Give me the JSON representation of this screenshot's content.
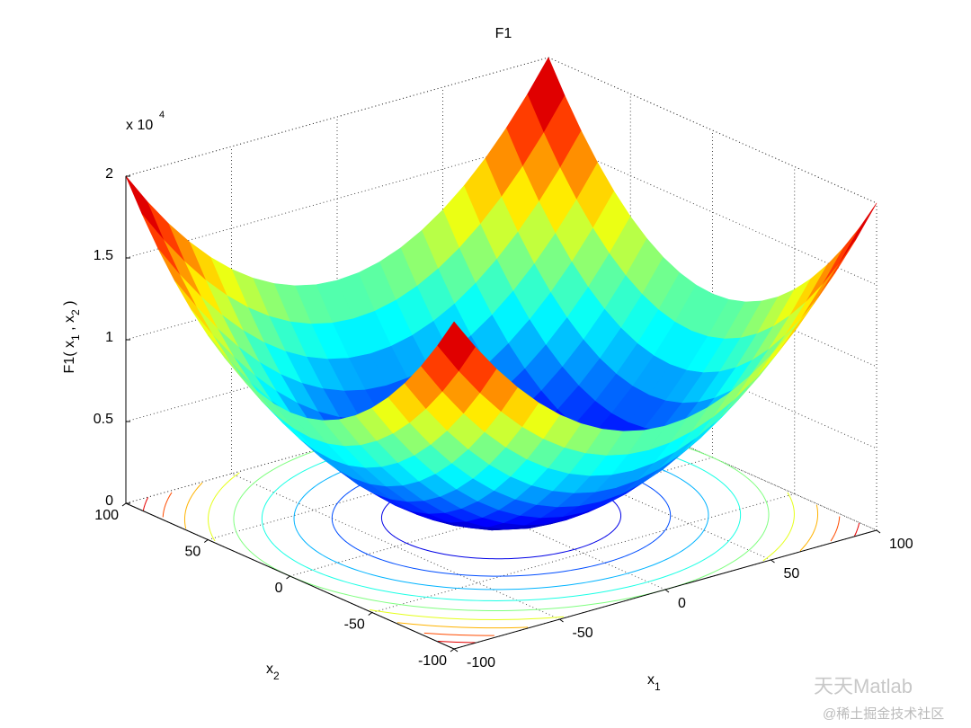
{
  "chart_data": {
    "type": "surface",
    "title": "F1",
    "xlabel": [
      "x",
      "1"
    ],
    "ylabel": [
      "x",
      "2"
    ],
    "zlabel": [
      "F1( x",
      "1",
      " , x",
      "2",
      " )"
    ],
    "z_scale_label": "x 10",
    "z_scale_exponent": "4",
    "x": [
      -100,
      -90,
      -80,
      -70,
      -60,
      -50,
      -40,
      -30,
      -20,
      -10,
      0,
      10,
      20,
      30,
      40,
      50,
      60,
      70,
      80,
      90,
      100
    ],
    "y": [
      -100,
      -90,
      -80,
      -70,
      -60,
      -50,
      -40,
      -30,
      -20,
      -10,
      0,
      10,
      20,
      30,
      40,
      50,
      60,
      70,
      80,
      90,
      100
    ],
    "z": [
      [
        20000,
        18100,
        16400,
        14900,
        13600,
        12500,
        11600,
        10900,
        10400,
        10100,
        10000,
        10100,
        10400,
        10900,
        11600,
        12500,
        13600,
        14900,
        16400,
        18100,
        20000
      ],
      [
        18100,
        16200,
        14500,
        13000,
        11700,
        10600,
        9700,
        9000,
        8500,
        8200,
        8100,
        8200,
        8500,
        9000,
        9700,
        10600,
        11700,
        13000,
        14500,
        16200,
        18100
      ],
      [
        16400,
        14500,
        12800,
        11300,
        10000,
        8900,
        8000,
        7300,
        6800,
        6500,
        6400,
        6500,
        6800,
        7300,
        8000,
        8900,
        10000,
        11300,
        12800,
        14500,
        16400
      ],
      [
        14900,
        13000,
        11300,
        9800,
        8500,
        7400,
        6500,
        5800,
        5300,
        5000,
        4900,
        5000,
        5300,
        5800,
        6500,
        7400,
        8500,
        9800,
        11300,
        13000,
        14900
      ],
      [
        13600,
        11700,
        10000,
        8500,
        7200,
        6100,
        5200,
        4500,
        4000,
        3700,
        3600,
        3700,
        4000,
        4500,
        5200,
        6100,
        7200,
        8500,
        10000,
        11700,
        13600
      ],
      [
        12500,
        10600,
        8900,
        7400,
        6100,
        5000,
        4100,
        3400,
        2900,
        2600,
        2500,
        2600,
        2900,
        3400,
        4100,
        5000,
        6100,
        7400,
        8900,
        10600,
        12500
      ],
      [
        11600,
        9700,
        8000,
        6500,
        5200,
        4100,
        3200,
        2500,
        2000,
        1700,
        1600,
        1700,
        2000,
        2500,
        3200,
        4100,
        5200,
        6500,
        8000,
        9700,
        11600
      ],
      [
        10900,
        9000,
        7300,
        5800,
        4500,
        3400,
        2500,
        1800,
        1300,
        1000,
        900,
        1000,
        1300,
        1800,
        2500,
        3400,
        4500,
        5800,
        7300,
        9000,
        10900
      ],
      [
        10400,
        8500,
        6800,
        5300,
        4000,
        2900,
        2000,
        1300,
        800,
        500,
        400,
        500,
        800,
        1300,
        2000,
        2900,
        4000,
        5300,
        6800,
        8500,
        10400
      ],
      [
        10100,
        8200,
        6500,
        5000,
        3700,
        2600,
        1700,
        1000,
        500,
        200,
        100,
        200,
        500,
        1000,
        1700,
        2600,
        3700,
        5000,
        6500,
        8200,
        10100
      ],
      [
        10000,
        8100,
        6400,
        4900,
        3600,
        2500,
        1600,
        900,
        400,
        100,
        0,
        100,
        400,
        900,
        1600,
        2500,
        3600,
        4900,
        6400,
        8100,
        10000
      ],
      [
        10100,
        8200,
        6500,
        5000,
        3700,
        2600,
        1700,
        1000,
        500,
        200,
        100,
        200,
        500,
        1000,
        1700,
        2600,
        3700,
        5000,
        6500,
        8200,
        10100
      ],
      [
        10400,
        8500,
        6800,
        5300,
        4000,
        2900,
        2000,
        1300,
        800,
        500,
        400,
        500,
        800,
        1300,
        2000,
        2900,
        4000,
        5300,
        6800,
        8500,
        10400
      ],
      [
        10900,
        9000,
        7300,
        5800,
        4500,
        3400,
        2500,
        1800,
        1300,
        1000,
        900,
        1000,
        1300,
        1800,
        2500,
        3400,
        4500,
        5800,
        7300,
        9000,
        10900
      ],
      [
        11600,
        9700,
        8000,
        6500,
        5200,
        4100,
        3200,
        2500,
        2000,
        1700,
        1600,
        1700,
        2000,
        2500,
        3200,
        4100,
        5200,
        6500,
        8000,
        9700,
        11600
      ],
      [
        12500,
        10600,
        8900,
        7400,
        6100,
        5000,
        4100,
        3400,
        2900,
        2600,
        2500,
        2600,
        2900,
        3400,
        4100,
        5000,
        6100,
        7400,
        8900,
        10600,
        12500
      ],
      [
        13600,
        11700,
        10000,
        8500,
        7200,
        6100,
        5200,
        4500,
        4000,
        3700,
        3600,
        3700,
        4000,
        4500,
        5200,
        6100,
        7200,
        8500,
        10000,
        11700,
        13600
      ],
      [
        14900,
        13000,
        11300,
        9800,
        8500,
        7400,
        6500,
        5800,
        5300,
        5000,
        4900,
        5000,
        5300,
        5800,
        6500,
        7400,
        8500,
        9800,
        11300,
        13000,
        14900
      ],
      [
        16400,
        14500,
        12800,
        11300,
        10000,
        8900,
        8000,
        7300,
        6800,
        6500,
        6400,
        6500,
        6800,
        7300,
        8000,
        8900,
        10000,
        11300,
        12800,
        14500,
        16400
      ],
      [
        18100,
        16200,
        14500,
        13000,
        11700,
        10600,
        9700,
        9000,
        8500,
        8200,
        8100,
        8200,
        8500,
        9000,
        9700,
        10600,
        11700,
        13000,
        14500,
        16200,
        18100
      ],
      [
        20000,
        18100,
        16400,
        14900,
        13600,
        12500,
        11600,
        10900,
        10400,
        10100,
        10000,
        10100,
        10400,
        10900,
        11600,
        12500,
        13600,
        14900,
        16400,
        18100,
        20000
      ]
    ],
    "contour_levels": [
      2000,
      4000,
      6000,
      8000,
      10000,
      12000,
      14000,
      16000,
      18000
    ],
    "xlim": [
      -100,
      100
    ],
    "ylim": [
      -100,
      100
    ],
    "zlim": [
      0,
      20000
    ],
    "xticks": [
      -100,
      -50,
      0,
      50,
      100
    ],
    "yticks": [
      -100,
      -50,
      0,
      50,
      100
    ],
    "zticks": [
      0,
      {
        "value": 5000,
        "label": "0.5"
      },
      {
        "value": 10000,
        "label": "1"
      },
      {
        "value": 15000,
        "label": "1.5"
      },
      {
        "value": 20000,
        "label": "2"
      }
    ],
    "colormap": "jet",
    "grid": true
  },
  "watermark": [
    "天天Matlab",
    "@稀土掘金技术社区"
  ]
}
